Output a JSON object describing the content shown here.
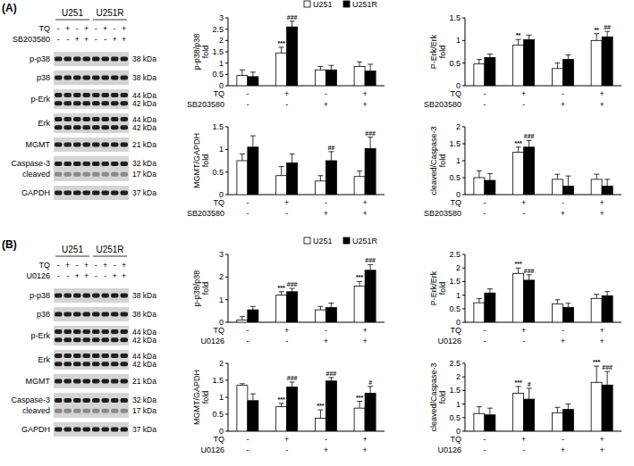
{
  "blots": [
    {
      "label": "(A)",
      "cell_lines": [
        "U251",
        "U251R"
      ],
      "treatments": [
        {
          "name": "TQ",
          "signs": [
            "-",
            "+",
            "-",
            "+",
            "-",
            "+",
            "-",
            "+"
          ]
        },
        {
          "name": "SB203580",
          "signs": [
            "-",
            "-",
            "+",
            "+",
            "-",
            "-",
            "+",
            "+"
          ]
        }
      ],
      "rows": [
        {
          "labels": [
            "p-p38"
          ],
          "kda": [
            "38 kDa"
          ]
        },
        {
          "labels": [
            "p38"
          ],
          "kda": [
            "38 kDa"
          ]
        },
        {
          "labels": [
            "p-Erk"
          ],
          "kda": [
            "44 kDa",
            "42 kDa"
          ]
        },
        {
          "labels": [
            "Erk"
          ],
          "kda": [
            "44 kDa",
            "42 kDa"
          ]
        },
        {
          "labels": [
            "MGMT"
          ],
          "kda": [
            "21 kDa"
          ]
        },
        {
          "labels": [
            "Caspase-3",
            "cleaved"
          ],
          "kda": [
            "32 kDa",
            "17 kDa"
          ]
        },
        {
          "labels": [
            "GAPDH"
          ],
          "kda": [
            "37 kDa"
          ]
        }
      ]
    },
    {
      "label": "(B)",
      "cell_lines": [
        "U251",
        "U251R"
      ],
      "treatments": [
        {
          "name": "TQ",
          "signs": [
            "-",
            "+",
            "-",
            "+",
            "-",
            "+",
            "-",
            "+"
          ]
        },
        {
          "name": "U0126",
          "signs": [
            "-",
            "-",
            "+",
            "+",
            "-",
            "-",
            "+",
            "+"
          ]
        }
      ],
      "rows": [
        {
          "labels": [
            "p-p38"
          ],
          "kda": [
            "38 kDa"
          ]
        },
        {
          "labels": [
            "p38"
          ],
          "kda": [
            "38 kDa"
          ]
        },
        {
          "labels": [
            "p-Erk"
          ],
          "kda": [
            "44 kDa",
            "42 kDa"
          ]
        },
        {
          "labels": [
            "Erk"
          ],
          "kda": [
            "44 kDa",
            "42 kDa"
          ]
        },
        {
          "labels": [
            "MGMT"
          ],
          "kda": [
            "21 kDa"
          ]
        },
        {
          "labels": [
            "Caspase-3",
            "cleaved"
          ],
          "kda": [
            "32 kDa",
            "17 kDa"
          ]
        },
        {
          "labels": [
            "GAPDH"
          ],
          "kda": [
            "37 kDa"
          ]
        }
      ]
    }
  ],
  "chart_data": [
    {
      "type": "bar",
      "y_label": "p-p38/p38 fold",
      "categories": [
        null,
        null,
        null,
        null
      ],
      "ylim": [
        0,
        3
      ],
      "yticks": [
        0,
        0.5,
        1,
        1.5,
        2,
        2.5,
        3
      ],
      "legend": "top",
      "conditions": [
        {
          "name": "TQ",
          "values": [
            "-",
            "+",
            "-",
            "+"
          ]
        },
        {
          "name": "SB203580",
          "values": [
            "-",
            "-",
            "+",
            "+"
          ]
        }
      ],
      "series": [
        {
          "name": "U251",
          "color": "#ffffff",
          "values": [
            0.45,
            1.45,
            0.7,
            0.85
          ],
          "errors": [
            0.25,
            0.25,
            0.15,
            0.2
          ],
          "significance": [
            null,
            "***",
            null,
            null
          ]
        },
        {
          "name": "U251R",
          "color": "#000000",
          "values": [
            0.4,
            2.6,
            0.7,
            0.65
          ],
          "errors": [
            0.2,
            0.25,
            0.2,
            0.3
          ],
          "significance": [
            null,
            "###",
            null,
            null
          ]
        }
      ]
    },
    {
      "type": "bar",
      "y_label": "P-Erk/Erk fold",
      "categories": [
        null,
        null,
        null,
        null
      ],
      "ylim": [
        0,
        1.5
      ],
      "yticks": [
        0,
        0.5,
        1,
        1.5
      ],
      "conditions": [
        {
          "name": "TQ",
          "values": [
            "-",
            "+",
            "-",
            "+"
          ]
        },
        {
          "name": "SB203580",
          "values": [
            "-",
            "-",
            "+",
            "+"
          ]
        }
      ],
      "series": [
        {
          "color": "#ffffff",
          "values": [
            0.48,
            0.9,
            0.38,
            1.0
          ],
          "errors": [
            0.1,
            0.12,
            0.12,
            0.15
          ],
          "significance": [
            null,
            "**",
            null,
            "**"
          ]
        },
        {
          "color": "#000000",
          "values": [
            0.62,
            1.02,
            0.58,
            1.08
          ],
          "errors": [
            0.08,
            0.1,
            0.1,
            0.12
          ],
          "significance": [
            null,
            null,
            null,
            "##"
          ]
        }
      ]
    },
    {
      "type": "bar",
      "y_label": "MGMT/GAPDH fold",
      "categories": [
        null,
        null,
        null,
        null
      ],
      "ylim": [
        0,
        1.5
      ],
      "yticks": [
        0,
        0.5,
        1,
        1.5
      ],
      "conditions": [
        {
          "name": "TQ",
          "values": [
            "-",
            "+",
            "-",
            "+"
          ]
        },
        {
          "name": "SB203580",
          "values": [
            "-",
            "-",
            "+",
            "+"
          ]
        }
      ],
      "series": [
        {
          "color": "#ffffff",
          "values": [
            0.75,
            0.42,
            0.3,
            0.4
          ],
          "errors": [
            0.15,
            0.2,
            0.12,
            0.12
          ]
        },
        {
          "color": "#000000",
          "values": [
            1.05,
            0.7,
            0.75,
            1.02
          ],
          "errors": [
            0.25,
            0.2,
            0.2,
            0.25
          ],
          "significance": [
            null,
            null,
            "##",
            "###"
          ]
        }
      ]
    },
    {
      "type": "bar",
      "y_label": "cleaved/Caspase-3 fold",
      "categories": [
        null,
        null,
        null,
        null
      ],
      "ylim": [
        0,
        2
      ],
      "yticks": [
        0,
        0.5,
        1,
        1.5,
        2
      ],
      "conditions": [
        {
          "name": "TQ",
          "values": [
            "-",
            "+",
            "-",
            "+"
          ]
        },
        {
          "name": "SB203580",
          "values": [
            "-",
            "-",
            "+",
            "+"
          ]
        }
      ],
      "series": [
        {
          "color": "#ffffff",
          "values": [
            0.5,
            1.25,
            0.45,
            0.45
          ],
          "errors": [
            0.2,
            0.15,
            0.15,
            0.15
          ],
          "significance": [
            null,
            "***",
            null,
            null
          ]
        },
        {
          "color": "#000000",
          "values": [
            0.42,
            1.4,
            0.25,
            0.25
          ],
          "errors": [
            0.2,
            0.2,
            0.3,
            0.2
          ],
          "significance": [
            null,
            "###",
            null,
            null
          ]
        }
      ]
    },
    {
      "type": "bar",
      "y_label": "p-p38/p38 fold",
      "categories": [
        null,
        null,
        null,
        null
      ],
      "ylim": [
        0,
        3
      ],
      "yticks": [
        0,
        1,
        2,
        3
      ],
      "legend": "top",
      "conditions": [
        {
          "name": "TQ",
          "values": [
            "-",
            "+",
            "-",
            "+"
          ]
        },
        {
          "name": "U0126",
          "values": [
            "-",
            "-",
            "+",
            "+"
          ]
        }
      ],
      "series": [
        {
          "name": "U251",
          "color": "#ffffff",
          "values": [
            0.1,
            1.2,
            0.55,
            1.6
          ],
          "errors": [
            0.15,
            0.15,
            0.15,
            0.2
          ],
          "significance": [
            null,
            "***",
            null,
            "***"
          ]
        },
        {
          "name": "U251R",
          "color": "#000000",
          "values": [
            0.55,
            1.35,
            0.65,
            2.3
          ],
          "errors": [
            0.15,
            0.15,
            0.2,
            0.25
          ],
          "significance": [
            null,
            "###",
            null,
            "###"
          ]
        }
      ]
    },
    {
      "type": "bar",
      "y_label": "P-Erk/Erk fold",
      "categories": [
        null,
        null,
        null,
        null
      ],
      "ylim": [
        0,
        2.5
      ],
      "yticks": [
        0,
        0.5,
        1,
        1.5,
        2,
        2.5
      ],
      "conditions": [
        {
          "name": "TQ",
          "values": [
            "-",
            "+",
            "-",
            "+"
          ]
        },
        {
          "name": "U0126",
          "values": [
            "-",
            "-",
            "+",
            "+"
          ]
        }
      ],
      "series": [
        {
          "color": "#ffffff",
          "values": [
            0.72,
            1.8,
            0.68,
            0.88
          ],
          "errors": [
            0.15,
            0.2,
            0.15,
            0.15
          ],
          "significance": [
            null,
            "***",
            null,
            null
          ]
        },
        {
          "color": "#000000",
          "values": [
            1.08,
            1.55,
            0.55,
            0.98
          ],
          "errors": [
            0.15,
            0.2,
            0.15,
            0.15
          ],
          "significance": [
            null,
            "###",
            null,
            null
          ]
        }
      ]
    },
    {
      "type": "bar",
      "y_label": "MGMT/GAPDH fold",
      "categories": [
        null,
        null,
        null,
        null
      ],
      "ylim": [
        0,
        2
      ],
      "yticks": [
        0,
        0.5,
        1,
        1.5,
        2
      ],
      "conditions": [
        {
          "name": "TQ",
          "values": [
            "-",
            "+",
            "-",
            "+"
          ]
        },
        {
          "name": "U0126",
          "values": [
            "-",
            "-",
            "+",
            "+"
          ]
        }
      ],
      "series": [
        {
          "color": "#ffffff",
          "values": [
            1.35,
            0.72,
            0.38,
            0.68
          ],
          "errors": [
            0.05,
            0.1,
            0.25,
            0.2
          ],
          "significance": [
            null,
            "***",
            "***",
            "***"
          ]
        },
        {
          "color": "#000000",
          "values": [
            0.9,
            1.3,
            1.48,
            1.12
          ],
          "errors": [
            0.2,
            0.15,
            0.1,
            0.2
          ],
          "significance": [
            null,
            "###",
            "###",
            "#"
          ]
        }
      ]
    },
    {
      "type": "bar",
      "y_label": "cleaved/Caspase-3 fold",
      "categories": [
        null,
        null,
        null,
        null
      ],
      "ylim": [
        0,
        2.5
      ],
      "yticks": [
        0,
        0.5,
        1,
        1.5,
        2,
        2.5
      ],
      "conditions": [
        {
          "name": "TQ",
          "values": [
            "-",
            "+",
            "-",
            "+"
          ]
        },
        {
          "name": "U0126",
          "values": [
            "-",
            "-",
            "+",
            "+"
          ]
        }
      ],
      "series": [
        {
          "color": "#ffffff",
          "values": [
            0.65,
            1.4,
            0.68,
            1.8
          ],
          "errors": [
            0.25,
            0.25,
            0.2,
            0.6
          ],
          "significance": [
            null,
            "***",
            null,
            "***"
          ]
        },
        {
          "color": "#000000",
          "values": [
            0.6,
            1.18,
            0.8,
            1.7
          ],
          "errors": [
            0.25,
            0.4,
            0.2,
            0.5
          ],
          "significance": [
            null,
            "#",
            null,
            "###"
          ]
        }
      ]
    }
  ]
}
